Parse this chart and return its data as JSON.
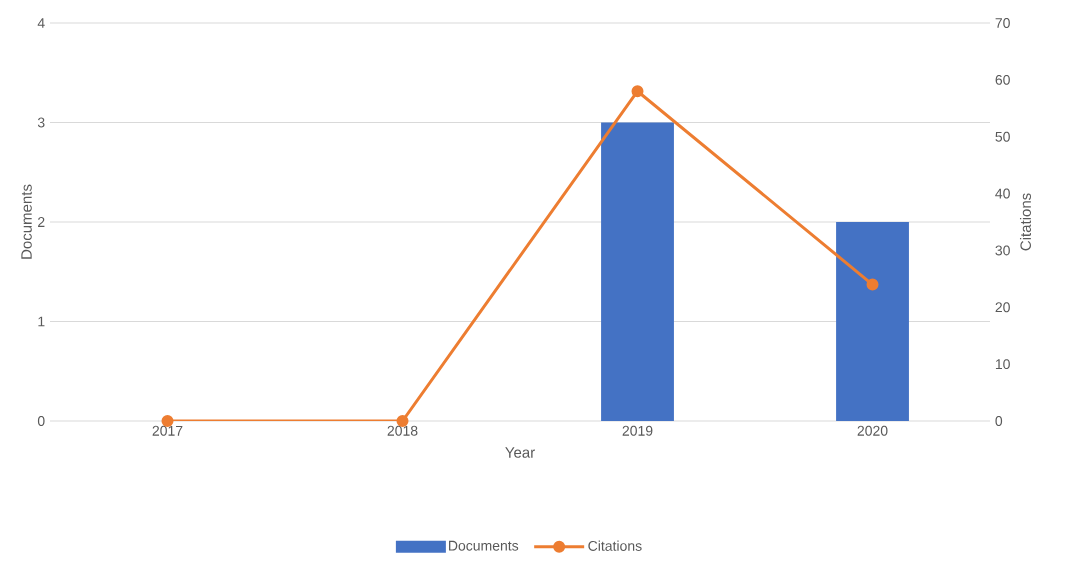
{
  "chart_data": {
    "type": "bar",
    "xlabel": "Year",
    "ylabel": "Documents",
    "y2label": "Citations",
    "categories": [
      "2017",
      "2018",
      "2019",
      "2020"
    ],
    "series": [
      {
        "name": "Documents",
        "color": "#4472c4",
        "values": [
          0,
          0,
          3,
          2
        ]
      },
      {
        "name": "Citations",
        "type": "line",
        "axis": "y2",
        "color": "#ed7d31",
        "marker": "circle",
        "values": [
          0,
          0,
          58,
          24
        ]
      }
    ],
    "ylim": [
      0,
      4
    ],
    "yticks": [
      0,
      1,
      2,
      3,
      4
    ],
    "y2lim": [
      0,
      70
    ],
    "y2ticks": [
      0,
      10,
      20,
      30,
      40,
      50,
      60,
      70
    ],
    "grid": "y",
    "legend": "bottom"
  }
}
